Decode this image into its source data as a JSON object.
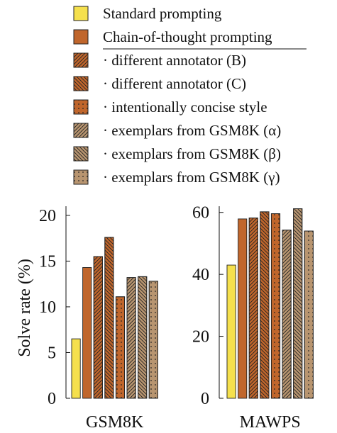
{
  "chart_data": [
    {
      "type": "bar",
      "panel": "GSM8K",
      "xlabel": "GSM8K",
      "ylabel": "Solve rate (%)",
      "ylim": [
        0,
        21
      ],
      "yticks": [
        0,
        5,
        10,
        15,
        20
      ],
      "series": [
        {
          "name": "Standard prompting",
          "value": 6.5
        },
        {
          "name": "Chain-of-thought prompting",
          "value": 14.3
        },
        {
          "name": "· different annotator (B)",
          "value": 15.5
        },
        {
          "name": "· different annotator (C)",
          "value": 17.6
        },
        {
          "name": "· intentionally concise style",
          "value": 11.1
        },
        {
          "name": "· exemplars from GSM8K (α)",
          "value": 13.2
        },
        {
          "name": "· exemplars from GSM8K (β)",
          "value": 13.3
        },
        {
          "name": "· exemplars from GSM8K (γ)",
          "value": 12.8
        }
      ]
    },
    {
      "type": "bar",
      "panel": "MAWPS",
      "xlabel": "MAWPS",
      "ylabel": "",
      "ylim": [
        0,
        62
      ],
      "yticks": [
        0,
        20,
        40,
        60
      ],
      "series": [
        {
          "name": "Standard prompting",
          "value": 43.0
        },
        {
          "name": "Chain-of-thought prompting",
          "value": 57.9
        },
        {
          "name": "· different annotator (B)",
          "value": 58.2
        },
        {
          "name": "· different annotator (C)",
          "value": 60.2
        },
        {
          "name": "· intentionally concise style",
          "value": 59.6
        },
        {
          "name": "· exemplars from GSM8K (α)",
          "value": 54.3
        },
        {
          "name": "· exemplars from GSM8K (β)",
          "value": 61.2
        },
        {
          "name": "· exemplars from GSM8K (γ)",
          "value": 54.0
        }
      ]
    }
  ],
  "legend": {
    "placement": "top",
    "items": [
      {
        "label": "Standard prompting",
        "color": "#f5e04d",
        "pattern": "solid"
      },
      {
        "label": "Chain-of-thought prompting",
        "color": "#c0662c",
        "pattern": "solid"
      },
      {
        "label": "· different annotator (B)",
        "color": "#c0662c",
        "pattern": "hatch-ne"
      },
      {
        "label": "· different annotator (C)",
        "color": "#c0662c",
        "pattern": "hatch-nw"
      },
      {
        "label": "· intentionally concise style",
        "color": "#c0662c",
        "pattern": "dots"
      },
      {
        "label": "· exemplars from GSM8K (α)",
        "color": "#b89570",
        "pattern": "hatch-ne"
      },
      {
        "label": "· exemplars from GSM8K (β)",
        "color": "#b89570",
        "pattern": "hatch-nw"
      },
      {
        "label": "· exemplars from GSM8K (γ)",
        "color": "#b89570",
        "pattern": "dots"
      }
    ]
  }
}
